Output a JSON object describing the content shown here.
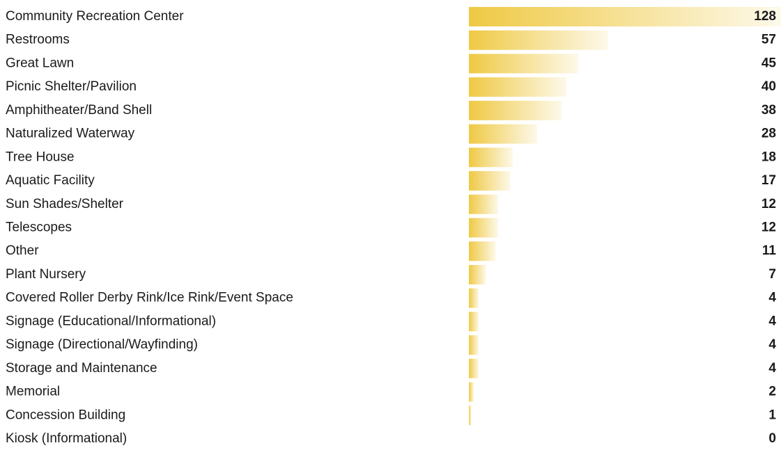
{
  "chart_data": {
    "type": "bar",
    "orientation": "horizontal",
    "color": "#efc944",
    "categories": [
      "Community Recreation Center",
      "Restrooms",
      "Great Lawn",
      "Picnic Shelter/Pavilion",
      "Amphitheater/Band Shell",
      "Naturalized Waterway",
      "Tree House",
      "Aquatic Facility",
      "Sun Shades/Shelter",
      "Telescopes",
      "Other",
      "Plant Nursery",
      "Covered Roller Derby Rink/Ice Rink/Event Space",
      "Signage (Educational/Informational)",
      "Signage (Directional/Wayfinding)",
      "Storage and Maintenance",
      "Memorial",
      "Concession Building",
      "Kiosk (Informational)"
    ],
    "values": [
      128,
      57,
      45,
      40,
      38,
      28,
      18,
      17,
      12,
      12,
      11,
      7,
      4,
      4,
      4,
      4,
      2,
      1,
      0
    ]
  }
}
